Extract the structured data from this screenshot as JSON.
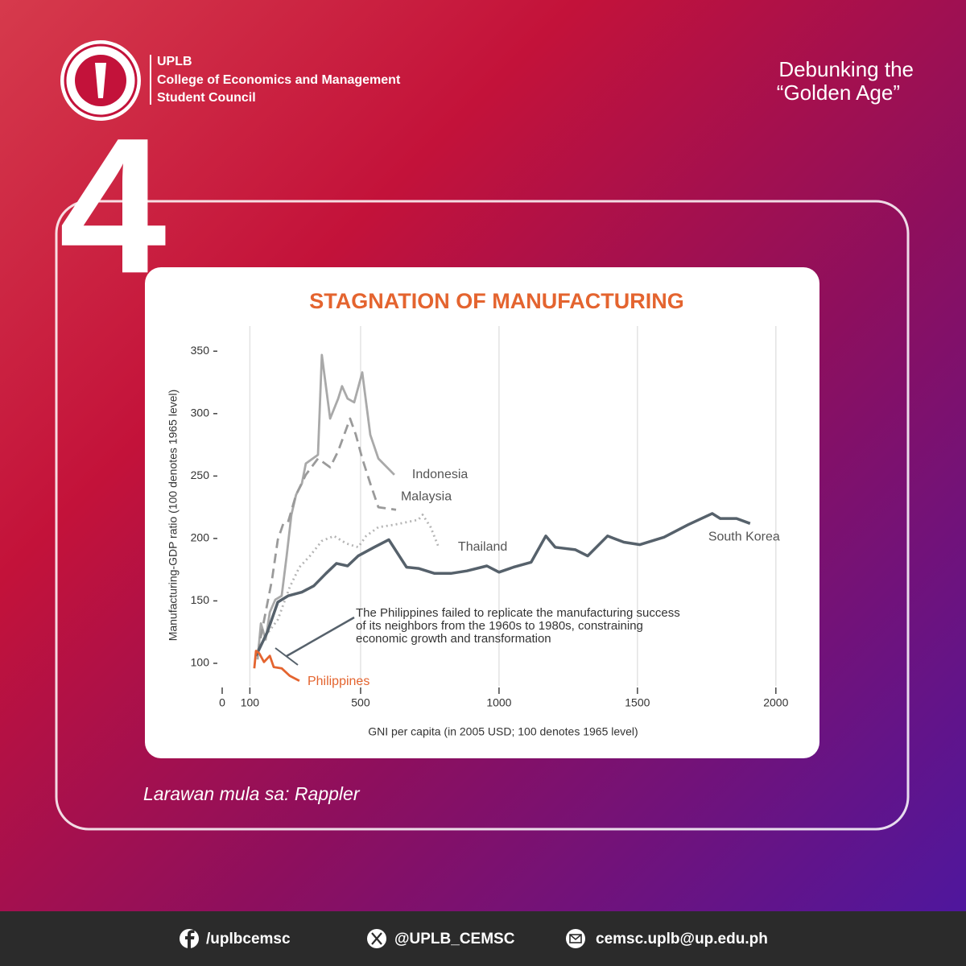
{
  "header": {
    "org": [
      "UPLB",
      "College of Economics and Management",
      "Student Council"
    ],
    "series_title": [
      "Debunking the",
      "“Golden Age”"
    ],
    "number": 4
  },
  "chart_data": {
    "type": "line",
    "title": "STAGNATION OF MANUFACTURING",
    "xlabel": "GNI per capita (in 2005 USD; 100 denotes 1965 level)",
    "ylabel": "Manufacturing-GDP ratio (100 denotes 1965 level)",
    "annotation": [
      "The Philippines failed to replicate the manufacturing success",
      "of its neighbors from the 1960s to 1980s, constraining",
      "economic growth and transformation"
    ],
    "xlim": [
      0,
      2050
    ],
    "ylim": [
      80,
      365
    ],
    "xticks": [
      0,
      100,
      500,
      1000,
      1500,
      2000
    ],
    "yticks": [
      100,
      150,
      200,
      250,
      300,
      350
    ],
    "grid": true,
    "series": [
      {
        "name": "Indonesia",
        "color": "#a9a9a9",
        "style": "solid",
        "x": [
          128,
          140,
          157,
          172,
          192,
          215,
          233,
          250,
          267,
          288,
          302,
          346,
          360,
          390,
          419,
          433,
          453,
          477,
          506,
          535,
          564,
          622
        ],
        "values": [
          103,
          132,
          119,
          141,
          151,
          154,
          186,
          219,
          235,
          244,
          260,
          267,
          347,
          296,
          312,
          322,
          312,
          309,
          333,
          283,
          264,
          251
        ]
      },
      {
        "name": "Malaysia",
        "color": "#9a9a9a",
        "style": "dashed",
        "x": [
          128,
          157,
          180,
          201,
          221,
          238,
          267,
          302,
          346,
          390,
          419,
          462,
          483,
          506,
          535,
          564,
          628
        ],
        "values": [
          108,
          141,
          167,
          199,
          212,
          213,
          235,
          251,
          264,
          257,
          270,
          296,
          283,
          264,
          244,
          225,
          223
        ]
      },
      {
        "name": "Thailand",
        "color": "#b5b5b5",
        "style": "dotted",
        "x": [
          157,
          201,
          244,
          279,
          317,
          360,
          404,
          448,
          491,
          520,
          564,
          622,
          666,
          709,
          724,
          753,
          782
        ],
        "values": [
          122,
          135,
          161,
          177,
          186,
          198,
          202,
          196,
          193,
          202,
          209,
          211,
          213,
          215,
          219,
          209,
          193
        ]
      },
      {
        "name": "South Korea",
        "color": "#56616b",
        "style": "solid",
        "x": [
          122,
          163,
          201,
          238,
          288,
          331,
          375,
          413,
          453,
          491,
          549,
          602,
          666,
          709,
          767,
          826,
          884,
          956,
          1000,
          1052,
          1116,
          1169,
          1203,
          1276,
          1320,
          1392,
          1451,
          1509,
          1596,
          1683,
          1770,
          1799,
          1858,
          1907
        ],
        "values": [
          106,
          125,
          149,
          154,
          157,
          162,
          172,
          180,
          178,
          186,
          193,
          199,
          177,
          176,
          172,
          172,
          174,
          178,
          173,
          177,
          181,
          202,
          193,
          191,
          186,
          202,
          197,
          195,
          201,
          211,
          220,
          216,
          216,
          212
        ]
      },
      {
        "name": "Philippines",
        "color": "#e4642f",
        "style": "solid",
        "x": [
          116,
          122,
          134,
          151,
          172,
          186,
          215,
          244,
          279
        ],
        "values": [
          96,
          110,
          108,
          101,
          106,
          97,
          96,
          90,
          86
        ]
      }
    ]
  },
  "caption": "Larawan mula sa: Rappler",
  "footer": {
    "facebook": "/uplbcemsc",
    "x": "@UPLB_CEMSC",
    "email": "cemsc.uplb@up.edu.ph"
  }
}
